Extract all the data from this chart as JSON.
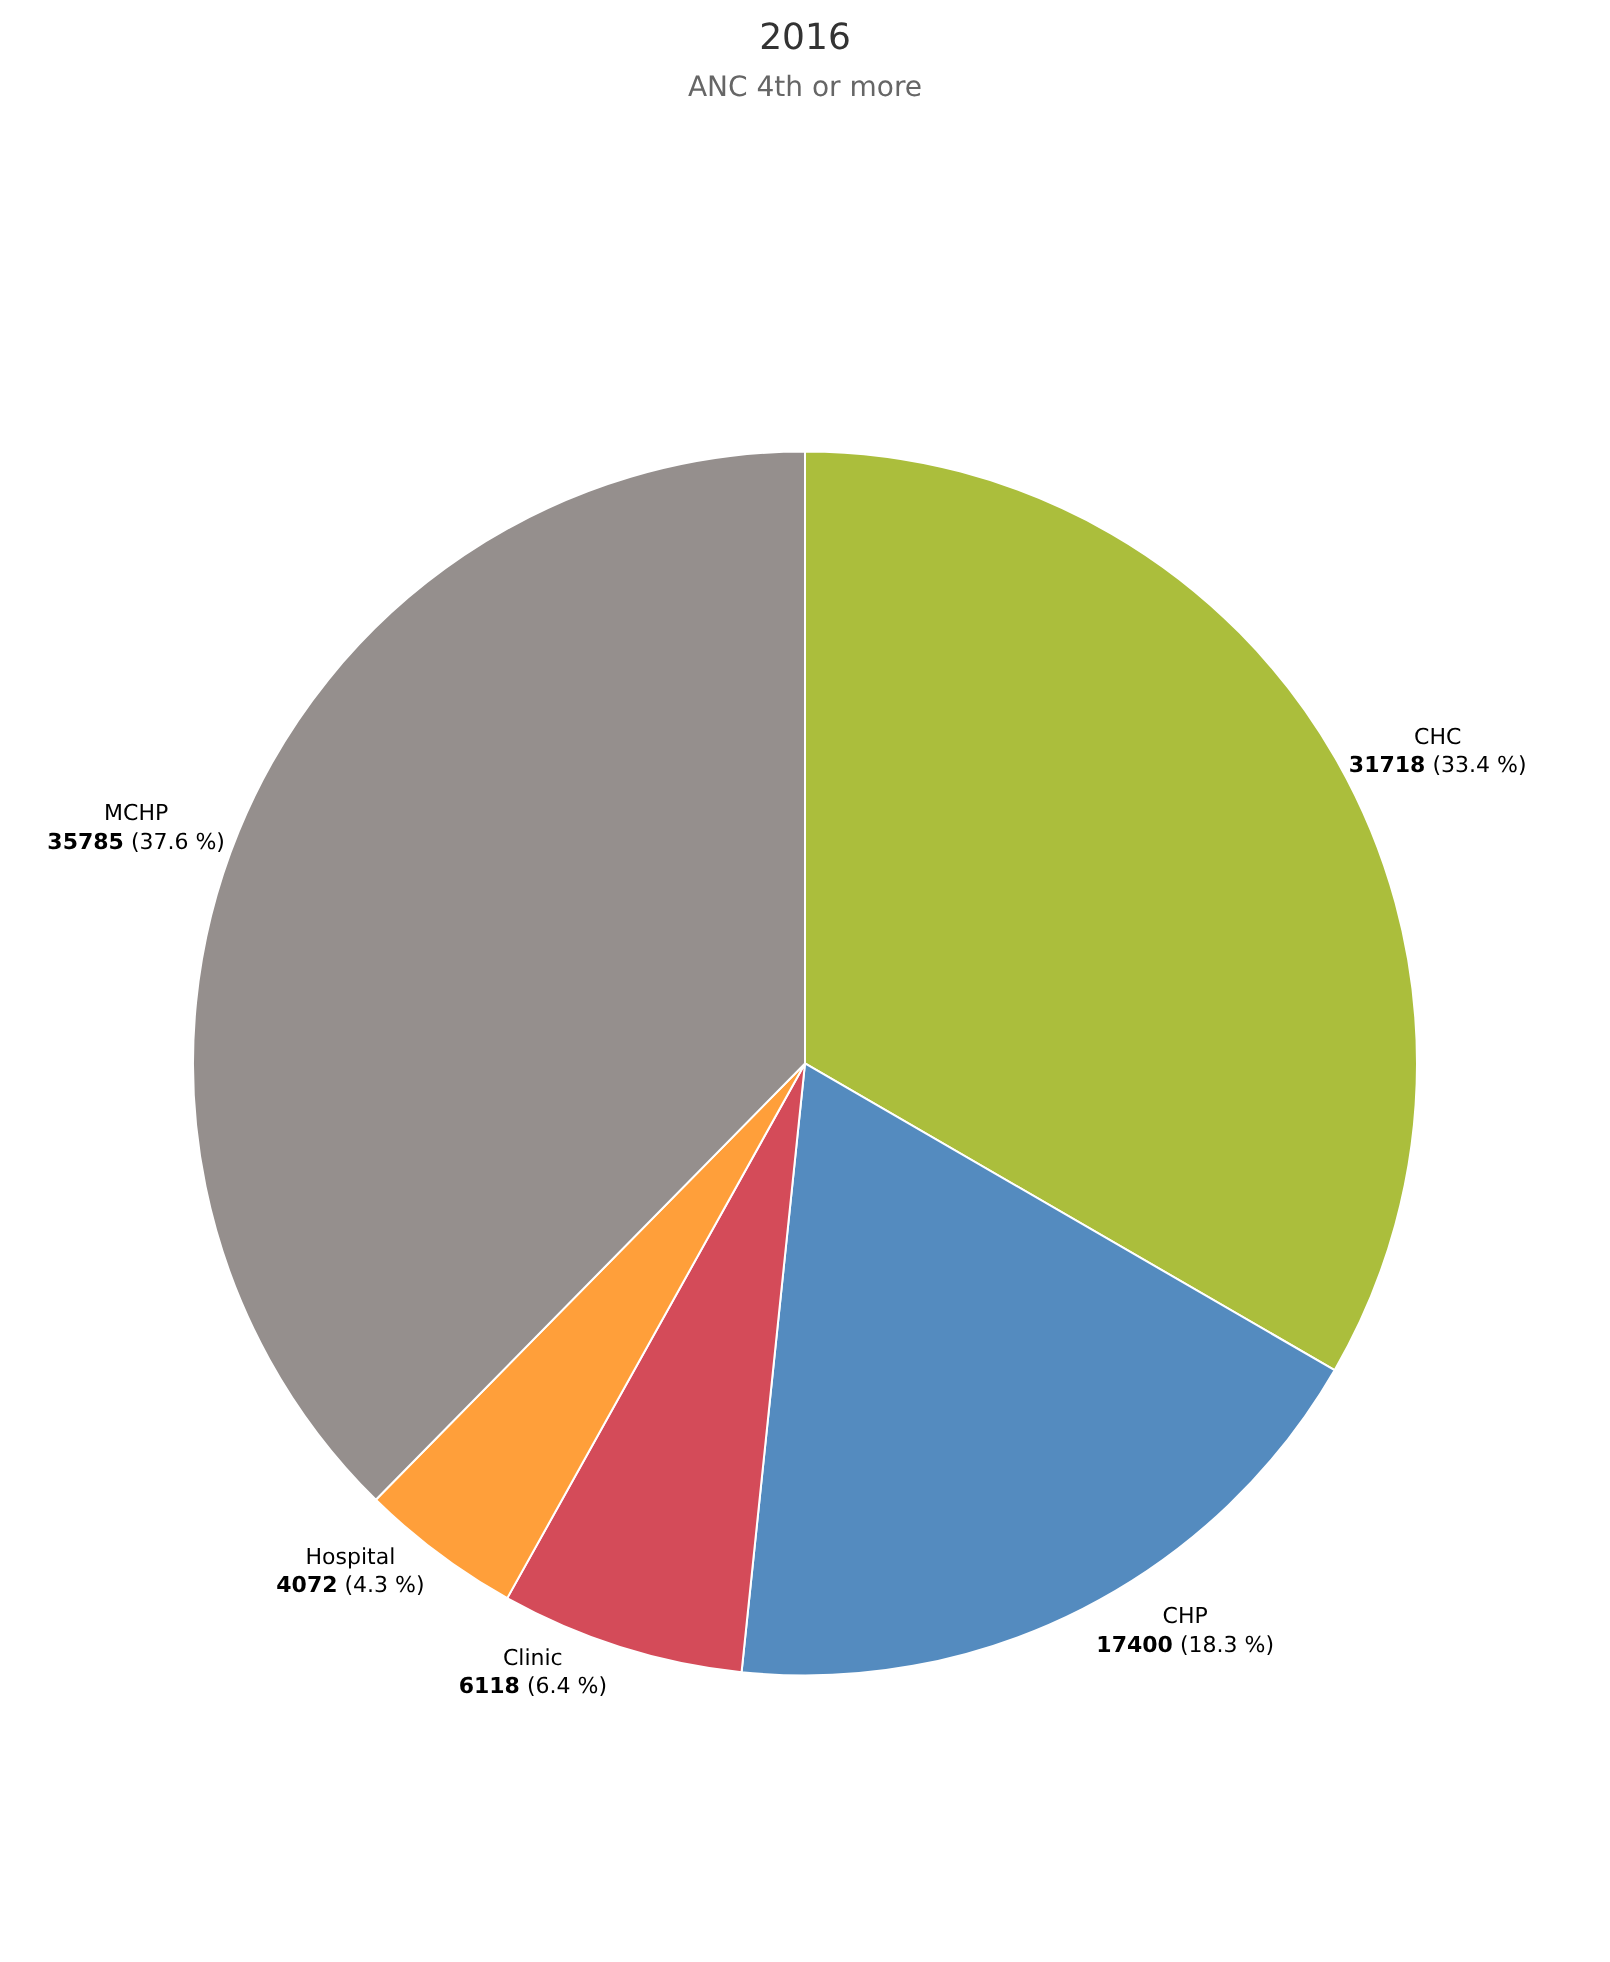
{
  "chart_data": {
    "type": "pie",
    "title": "2016",
    "subtitle": "ANC 4th or more",
    "categories": [
      "CHC",
      "CHP",
      "Clinic",
      "Hospital",
      "MCHP"
    ],
    "values": [
      31718,
      17400,
      6118,
      4072,
      35785
    ],
    "colors": [
      "#abbe3c",
      "#548bbf",
      "#d44b59",
      "#ff9f3a",
      "#958f8d"
    ],
    "value_labels": [
      "31718 (33.4 %)",
      "17400 (18.3 %)",
      "6118 (6.4 %)",
      "4072 (4.3 %)",
      "35785 (37.6 %)"
    ],
    "legend": false
  }
}
